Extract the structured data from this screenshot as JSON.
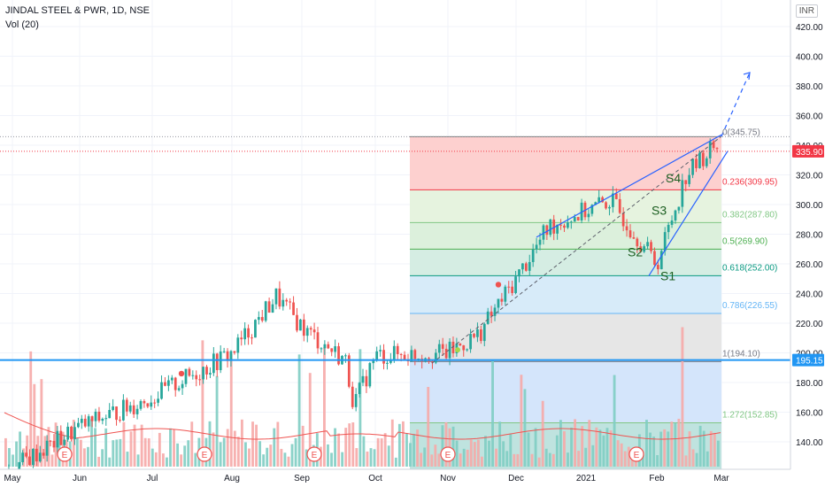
{
  "header": {
    "symbol_line": "JINDAL STEEL & PWR, 1D, NSE",
    "volume_line": "Vol (20)",
    "currency_button": "INR"
  },
  "colors": {
    "up": "#26a69a",
    "down": "#ef5350",
    "fib_line": "#2962ff",
    "current_price": "#f23645",
    "marker_price": "#2196f3"
  },
  "price_axis": {
    "ticks": [
      "420.00",
      "400.00",
      "380.00",
      "360.00",
      "340.00",
      "320.00",
      "300.00",
      "280.00",
      "260.00",
      "240.00",
      "220.00",
      "200.00",
      "180.00",
      "160.00",
      "140.00"
    ],
    "current_price_label": "335.90",
    "marker_price_label": "195.15"
  },
  "time_axis": {
    "labels": [
      "May",
      "Jun",
      "Jul",
      "Aug",
      "Sep",
      "Oct",
      "Nov",
      "Dec",
      "2021",
      "Feb",
      "Mar"
    ]
  },
  "fibonacci": {
    "levels": [
      {
        "label": "0(345.75)",
        "ratio": 0,
        "price": 345.75
      },
      {
        "label": "0.236(309.95)",
        "ratio": 0.236,
        "price": 309.95
      },
      {
        "label": "0.382(287.80)",
        "ratio": 0.382,
        "price": 287.8
      },
      {
        "label": "0.5(269.90)",
        "ratio": 0.5,
        "price": 269.9
      },
      {
        "label": "0.618(252.00)",
        "ratio": 0.618,
        "price": 252.0
      },
      {
        "label": "0.786(226.55)",
        "ratio": 0.786,
        "price": 226.55
      },
      {
        "label": "1(194.10)",
        "ratio": 1,
        "price": 194.1
      },
      {
        "label": "1.272(152.85)",
        "ratio": 1.272,
        "price": 152.85
      }
    ]
  },
  "annotations": [
    "S1",
    "S2",
    "S3",
    "S4"
  ],
  "earnings_markers": [
    "E",
    "E",
    "E",
    "E",
    "E"
  ],
  "chart_data": {
    "type": "candlestick",
    "title": "JINDAL STEEL & PWR, 1D, NSE",
    "ylim": [
      125,
      430
    ],
    "x_labels": [
      "May",
      "Jun",
      "Jul",
      "Aug",
      "Sep",
      "Oct",
      "Nov",
      "Dec",
      "2021",
      "Feb",
      "Mar"
    ],
    "price_path": [
      {
        "date": "May",
        "close": 120
      },
      {
        "date": "Jun",
        "close": 150
      },
      {
        "date": "Jul",
        "close": 170
      },
      {
        "date": "Aug",
        "close": 200
      },
      {
        "date": "Aug",
        "close": 238
      },
      {
        "date": "Sep",
        "close": 215
      },
      {
        "date": "Sep",
        "close": 195
      },
      {
        "date": "Oct",
        "close": 165
      },
      {
        "date": "Oct",
        "close": 198
      },
      {
        "date": "Nov",
        "close": 200
      },
      {
        "date": "Nov",
        "close": 212
      },
      {
        "date": "Dec",
        "close": 250
      },
      {
        "date": "Dec",
        "close": 285
      },
      {
        "date": "2021",
        "close": 303
      },
      {
        "date": "2021",
        "close": 270
      },
      {
        "date": "Feb",
        "close": 260
      },
      {
        "date": "Feb",
        "close": 320
      },
      {
        "date": "Mar",
        "close": 343
      }
    ],
    "last_price": 335.9,
    "fib_high": 345.75,
    "fib_low": 194.1,
    "volume_ma_period": 20
  }
}
